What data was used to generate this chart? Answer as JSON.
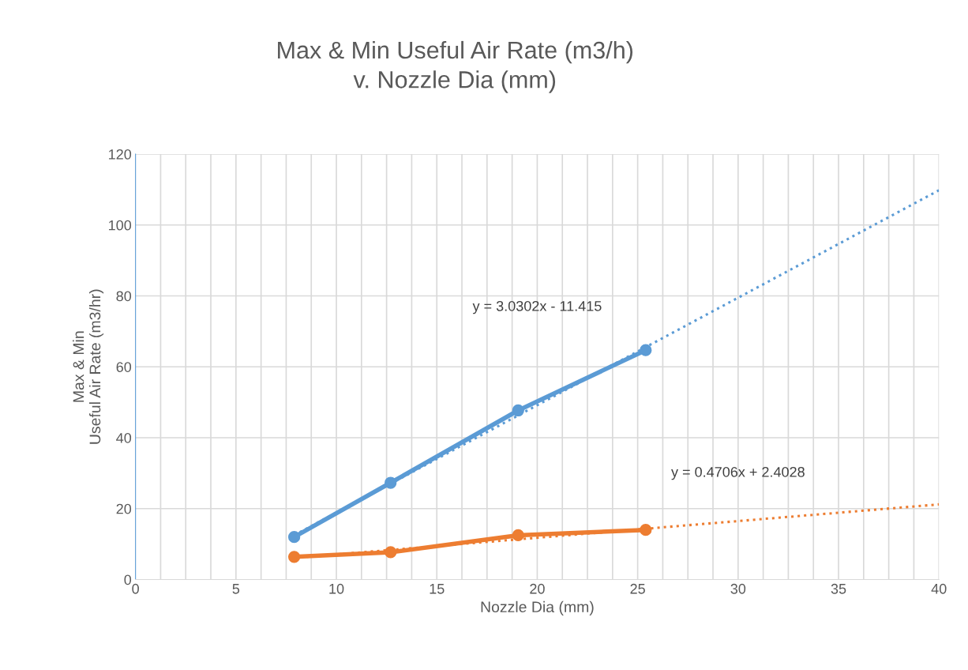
{
  "chart_data": {
    "type": "line",
    "title": "Max & Min Useful Air Rate (m3/h)\nv. Nozzle Dia (mm)",
    "xlabel": "Nozzle Dia (mm)",
    "ylabel": "Max & Min\nUseful Air Rate (m3/hr)",
    "series": [
      {
        "color": "#5b9bd5",
        "x": [
          7.9,
          12.7,
          19.05,
          25.4
        ],
        "values": [
          12,
          27.3,
          47.7,
          64.7
        ],
        "marker": "circle",
        "line_style": "solid"
      },
      {
        "color": "#ed7d31",
        "x": [
          7.9,
          12.7,
          19.05,
          25.4
        ],
        "values": [
          6.4,
          7.7,
          12.5,
          14
        ],
        "marker": "circle",
        "line_style": "solid"
      },
      {
        "color": "#5b9bd5",
        "x": [
          7.9,
          40
        ],
        "values": [
          12.5,
          109.8
        ],
        "marker": "none",
        "line_style": "dotted"
      },
      {
        "color": "#ed7d31",
        "x": [
          7.9,
          40
        ],
        "values": [
          6.1,
          21.2
        ],
        "marker": "none",
        "line_style": "dotted"
      }
    ],
    "annotations": [
      "y = 3.0302x - 11.415",
      "y = 0.4706x + 2.4028"
    ],
    "xlim": [
      0,
      40
    ],
    "xticks": [
      0,
      5,
      10,
      15,
      20,
      25,
      30,
      35,
      40
    ],
    "ylim": [
      0,
      120
    ],
    "yticks": [
      0,
      20,
      40,
      60,
      80,
      100,
      120
    ],
    "grid": true,
    "legend": false
  }
}
